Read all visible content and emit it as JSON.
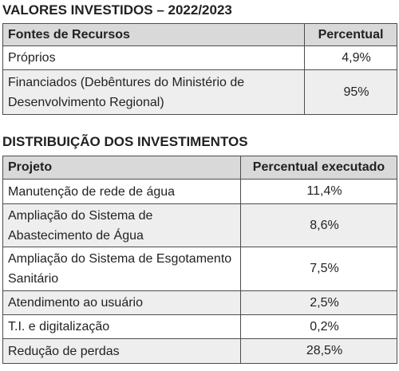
{
  "section1": {
    "title": "VALORES INVESTIDOS – 2022/2023",
    "headers": [
      "Fontes de Recursos",
      "Percentual"
    ],
    "rows": [
      {
        "label": "Próprios",
        "value": "4,9%"
      },
      {
        "label": "Financiados (Debêntures do Ministério de Desenvolvimento Regional)",
        "value": "95%"
      }
    ]
  },
  "section2": {
    "title": "DISTRIBUIÇÃO DOS INVESTIMENTOS",
    "headers": [
      "Projeto",
      "Percentual executado"
    ],
    "rows": [
      {
        "label": "Manutenção de rede de água",
        "value": "11,4%"
      },
      {
        "label": "Ampliação do Sistema de Abastecimento de Água",
        "value": "8,6%"
      },
      {
        "label": "Ampliação do Sistema de Esgotamento Sanitário",
        "value": "7,5%"
      },
      {
        "label": "Atendimento ao usuário",
        "value": "2,5%"
      },
      {
        "label": "T.I. e digitalização",
        "value": "0,2%"
      },
      {
        "label": "Redução de perdas",
        "value": "28,5%"
      }
    ]
  }
}
